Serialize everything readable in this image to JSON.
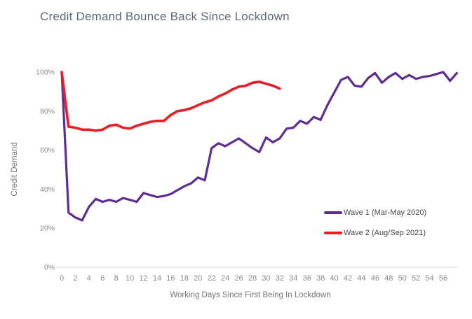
{
  "title": "Credit Demand Bounce Back Since Lockdown",
  "colors": {
    "wave1": "#5e2d91",
    "wave2": "#ed1c24",
    "axis_line": "#d9d9d9",
    "tick_text": "#8a8a8a",
    "axis_title_text": "#757575",
    "title_text": "#5f6873",
    "legend_text": "#454545",
    "background": "#ffffff"
  },
  "chart_data": {
    "type": "line",
    "title": "Credit Demand Bounce Back Since Lockdown",
    "xlabel": "Working Days Since First Being In Lockdown",
    "ylabel": "Credit Demand",
    "xlim": [
      0,
      58
    ],
    "ylim": [
      0,
      100
    ],
    "grid": false,
    "legend_position": "inside-right",
    "x_tick_labels": [
      "0",
      "2",
      "4",
      "6",
      "8",
      "10",
      "12",
      "14",
      "16",
      "18",
      "20",
      "22",
      "24",
      "26",
      "28",
      "30",
      "32",
      "34",
      "36",
      "38",
      "40",
      "42",
      "44",
      "46",
      "48",
      "50",
      "52",
      "54",
      "56"
    ],
    "x_tick_values": [
      0,
      2,
      4,
      6,
      8,
      10,
      12,
      14,
      16,
      18,
      20,
      22,
      24,
      26,
      28,
      30,
      32,
      34,
      36,
      38,
      40,
      42,
      44,
      46,
      48,
      50,
      52,
      54,
      56
    ],
    "y_tick_labels": [
      "0%",
      "20%",
      "40%",
      "60%",
      "80%",
      "100%"
    ],
    "y_tick_values": [
      0,
      20,
      40,
      60,
      80,
      100
    ],
    "x_step": 1,
    "series": [
      {
        "name": "Wave 1 (Mar-May 2020)",
        "color_key": "wave1",
        "x_start": 0,
        "values": [
          100,
          28,
          25.5,
          24,
          31,
          35,
          33.5,
          34.5,
          33.5,
          35.5,
          34.5,
          33.5,
          38,
          37,
          36,
          36.5,
          37.5,
          39.5,
          41.5,
          43,
          46,
          44.5,
          61,
          63.5,
          62,
          64,
          66,
          63.5,
          61,
          59,
          66.5,
          64,
          66,
          71,
          71.5,
          75,
          73.5,
          77,
          75.5,
          83,
          89.5,
          96,
          97.5,
          93,
          92.5,
          97,
          99.5,
          94.5,
          97.5,
          99.5,
          96.5,
          98.5,
          96.5,
          97.5,
          98,
          99,
          100,
          95.5,
          99.5
        ]
      },
      {
        "name": "Wave 2 (Aug/Sep 2021)",
        "color_key": "wave2",
        "x_start": 0,
        "values": [
          100,
          72,
          71.5,
          70.5,
          70.5,
          70,
          70.5,
          72.5,
          73,
          71.5,
          71,
          72.5,
          73.5,
          74.5,
          75,
          75,
          78,
          80,
          80.5,
          81.5,
          83,
          84.5,
          85.5,
          87.5,
          89,
          91,
          92.5,
          93,
          94.5,
          95,
          94,
          93,
          91.5
        ]
      }
    ]
  }
}
